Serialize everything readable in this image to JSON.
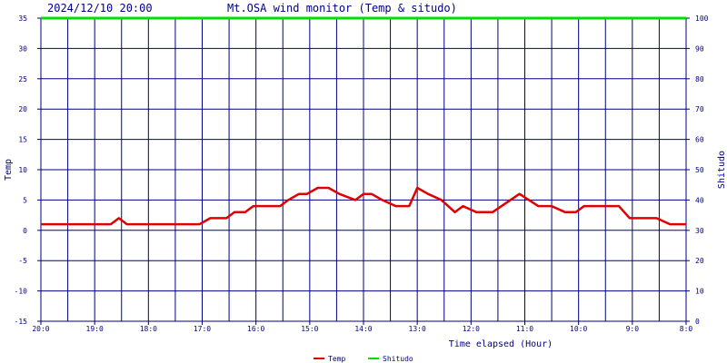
{
  "header": {
    "timestamp": "2024/12/10 20:00",
    "title": "Mt.OSA wind monitor (Temp & situdo)"
  },
  "chart_data": {
    "type": "line",
    "title": "Mt.OSA wind monitor (Temp & situdo)",
    "xlabel": "Time elapsed (Hour)",
    "ylabel_left": "Temp",
    "ylabel_right": "Shitudo",
    "x_range": [
      0,
      12
    ],
    "x_direction": "reversed-time",
    "y_left_range": [
      -15,
      35
    ],
    "y_right_range": [
      0,
      100
    ],
    "y_left_ticks": [
      "-15",
      "-10",
      "-5",
      "0",
      "5",
      "10",
      "15",
      "20",
      "25",
      "30",
      "35"
    ],
    "y_right_ticks": [
      "0",
      "10",
      "20",
      "30",
      "40",
      "50",
      "60",
      "70",
      "80",
      "90",
      "100"
    ],
    "x_ticks": [
      {
        "label": "20:0",
        "x": 0
      },
      {
        "label": "19:0",
        "x": 1
      },
      {
        "label": "18:0",
        "x": 2
      },
      {
        "label": "17:0",
        "x": 3
      },
      {
        "label": "16:0",
        "x": 4
      },
      {
        "label": "15:0",
        "x": 5
      },
      {
        "label": "14:0",
        "x": 6
      },
      {
        "label": "13:0",
        "x": 7
      },
      {
        "label": "12:0",
        "x": 8
      },
      {
        "label": "11:0",
        "x": 9
      },
      {
        "label": "10:0",
        "x": 10
      },
      {
        "label": "9:0",
        "x": 11
      },
      {
        "label": "8:0",
        "x": 12
      }
    ],
    "grid": true,
    "legend_position": "bottom-center",
    "series": [
      {
        "name": "Temp",
        "axis": "left",
        "color": "#e00000",
        "x": [
          0,
          0.5,
          1.3,
          1.45,
          1.6,
          2.0,
          2.5,
          2.95,
          3.15,
          3.45,
          3.6,
          3.8,
          3.95,
          4.45,
          4.6,
          4.8,
          4.95,
          5.15,
          5.35,
          5.55,
          5.85,
          6.0,
          6.15,
          6.35,
          6.6,
          6.85,
          7.0,
          7.2,
          7.45,
          7.7,
          7.85,
          8.1,
          8.4,
          8.9,
          9.25,
          9.5,
          9.75,
          9.95,
          10.1,
          10.5,
          10.75,
          10.95,
          11.2,
          11.45,
          11.7,
          12.0
        ],
        "y": [
          1,
          1,
          1,
          2,
          1,
          1,
          1,
          1,
          2,
          2,
          3,
          3,
          4,
          4,
          5,
          6,
          6,
          7,
          7,
          6,
          5,
          6,
          6,
          5,
          4,
          4,
          7,
          6,
          5,
          3,
          4,
          3,
          3,
          6,
          4,
          4,
          3,
          3,
          4,
          4,
          4,
          2,
          2,
          2,
          1,
          1
        ]
      },
      {
        "name": "Shitudo",
        "axis": "right",
        "color": "#00e000",
        "x": [
          0,
          12
        ],
        "y": [
          100,
          100
        ]
      }
    ]
  },
  "colors": {
    "frame": "#000080",
    "grid": "#000080",
    "temp": "#e00000",
    "shitudo": "#00e000"
  }
}
